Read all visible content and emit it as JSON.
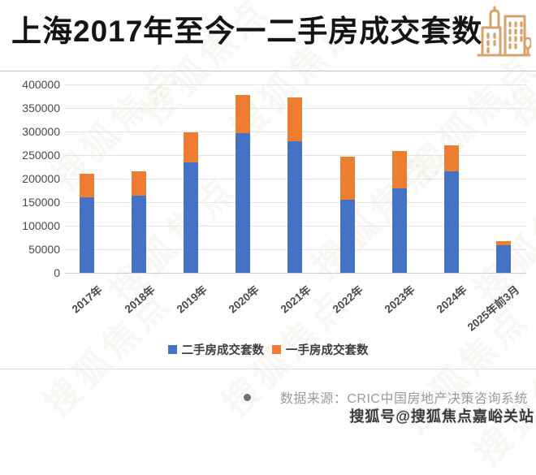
{
  "header": {
    "title": "上海2017年至今一二手房成交套数"
  },
  "chart_data": {
    "type": "bar",
    "stacked": true,
    "title": "上海2017年至今一二手房成交套数",
    "categories": [
      "2017年",
      "2018年",
      "2019年",
      "2020年",
      "2021年",
      "2022年",
      "2023年",
      "2024年",
      "2025年前3月"
    ],
    "series": [
      {
        "name": "二手房成交套数",
        "color": "#4472C4",
        "values": [
          161000,
          163000,
          235000,
          297000,
          280000,
          155000,
          179000,
          216000,
          58000
        ]
      },
      {
        "name": "一手房成交套数",
        "color": "#ED7D31",
        "values": [
          50000,
          52000,
          63000,
          80000,
          93000,
          91000,
          79000,
          55000,
          9000
        ]
      }
    ],
    "totals": [
      211000,
      215000,
      298000,
      377000,
      373000,
      246000,
      258000,
      271000,
      67000
    ],
    "xlabel": "",
    "ylabel": "",
    "ylim": [
      0,
      400000
    ],
    "ytick_step": 50000,
    "grid": true,
    "legend_position": "bottom"
  },
  "footer": {
    "source": "数据来源：CRIC中国房地产决策咨询系统",
    "watermark": "搜狐号@搜狐焦点嘉峪关站"
  },
  "watermark_pattern": "搜狐焦点",
  "colors": {
    "secondhand_blue": "#4472C4",
    "newhome_orange": "#ED7D31",
    "icon_tan": "#D9A26B",
    "title_text": "#141414",
    "axis_text": "#4a4a4a",
    "gridline": "#e4e4e4",
    "source_text": "#9b9b9b"
  }
}
